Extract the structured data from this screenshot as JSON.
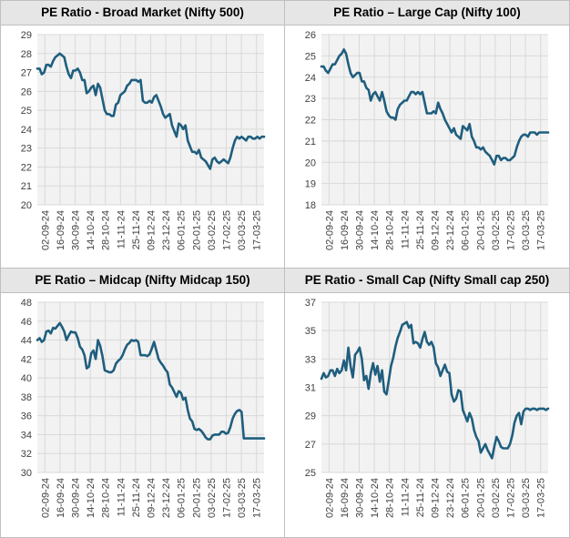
{
  "chart_data": [
    {
      "type": "line",
      "title": "PE Ratio - Broad Market (Nifty 500)",
      "x_ticks": [
        "02-09-24",
        "16-09-24",
        "30-09-24",
        "14-10-24",
        "28-10-24",
        "11-11-24",
        "25-11-24",
        "09-12-24",
        "23-12-24",
        "06-01-25",
        "20-01-25",
        "03-02-25",
        "17-02-25",
        "03-03-25",
        "17-03-25"
      ],
      "ylim": [
        20,
        29
      ],
      "y_ticks": [
        20,
        21,
        22,
        23,
        24,
        25,
        26,
        27,
        28,
        29
      ],
      "grid": true,
      "line_color": "#1f5e7e",
      "series": [
        {
          "x": [
            0,
            2,
            4,
            6,
            8,
            10,
            12,
            14,
            16,
            18,
            20,
            22,
            24,
            26,
            28,
            30,
            32,
            34,
            36,
            38,
            40,
            42,
            44,
            46,
            48,
            50,
            52,
            54,
            56,
            58,
            60,
            62,
            64,
            66,
            68,
            70,
            72,
            74,
            76,
            78,
            80,
            82,
            84,
            86,
            88,
            90,
            92,
            94,
            96,
            98,
            100,
            102,
            104,
            106,
            108,
            110,
            112,
            114,
            116,
            118,
            120,
            122,
            124,
            126,
            128,
            130,
            132,
            134,
            136,
            138,
            140,
            142,
            144,
            146,
            148,
            150,
            152,
            154,
            156,
            158,
            160,
            162,
            164,
            166,
            168,
            170,
            172,
            174,
            176,
            178,
            180,
            182,
            184,
            186,
            188,
            190,
            192,
            194,
            196,
            198,
            200,
            202
          ],
          "values": [
            27.2,
            27.2,
            26.9,
            27.0,
            27.4,
            27.4,
            27.3,
            27.6,
            27.8,
            27.9,
            28.0,
            27.9,
            27.8,
            27.3,
            26.9,
            26.7,
            27.1,
            27.1,
            27.2,
            27.0,
            26.6,
            26.6,
            25.9,
            26.0,
            26.2,
            26.3,
            25.8,
            26.4,
            26.2,
            25.6,
            25.0,
            24.8,
            24.8,
            24.7,
            24.7,
            25.3,
            25.4,
            25.8,
            25.9,
            26.0,
            26.3,
            26.4,
            26.6,
            26.6,
            26.6,
            26.5,
            26.6,
            25.5,
            25.4,
            25.4,
            25.5,
            25.4,
            25.7,
            25.8,
            25.5,
            25.2,
            24.8,
            24.6,
            24.7,
            24.8,
            24.2,
            23.9,
            23.6,
            24.3,
            24.2,
            24.0,
            24.2,
            23.4,
            23.1,
            22.8,
            22.8,
            22.7,
            22.9,
            22.5,
            22.4,
            22.3,
            22.1,
            21.9,
            22.4,
            22.5,
            22.3,
            22.2,
            22.3,
            22.4,
            22.3,
            22.2,
            22.5,
            23.0,
            23.4,
            23.6,
            23.5,
            23.6,
            23.5,
            23.4,
            23.6,
            23.6,
            23.5,
            23.5,
            23.6,
            23.5,
            23.6,
            23.6
          ]
        }
      ]
    },
    {
      "type": "line",
      "title": "PE Ratio – Large Cap (Nifty 100)",
      "x_ticks": [
        "02-09-24",
        "16-09-24",
        "30-09-24",
        "14-10-24",
        "28-10-24",
        "11-11-24",
        "25-11-24",
        "09-12-24",
        "23-12-24",
        "06-01-25",
        "20-01-25",
        "03-02-25",
        "17-02-25",
        "03-03-25",
        "17-03-25"
      ],
      "ylim": [
        18,
        26
      ],
      "y_ticks": [
        18,
        19,
        20,
        21,
        22,
        23,
        24,
        25,
        26
      ],
      "grid": true,
      "line_color": "#1f5e7e",
      "series": [
        {
          "x": [
            0,
            2,
            4,
            6,
            8,
            10,
            12,
            14,
            16,
            18,
            20,
            22,
            24,
            26,
            28,
            30,
            32,
            34,
            36,
            38,
            40,
            42,
            44,
            46,
            48,
            50,
            52,
            54,
            56,
            58,
            60,
            62,
            64,
            66,
            68,
            70,
            72,
            74,
            76,
            78,
            80,
            82,
            84,
            86,
            88,
            90,
            92,
            94,
            96,
            98,
            100,
            102,
            104,
            106,
            108,
            110,
            112,
            114,
            116,
            118,
            120,
            122,
            124,
            126,
            128,
            130,
            132,
            134,
            136,
            138,
            140,
            142,
            144,
            146,
            148,
            150,
            152,
            154,
            156,
            158,
            160,
            162,
            164,
            166,
            168,
            170,
            172,
            174,
            176,
            178,
            180,
            182,
            184,
            186,
            188,
            190,
            192,
            194,
            196,
            198,
            200,
            202
          ],
          "values": [
            24.5,
            24.5,
            24.3,
            24.2,
            24.4,
            24.6,
            24.6,
            24.8,
            25.0,
            25.1,
            25.3,
            25.1,
            24.6,
            24.2,
            24.0,
            24.1,
            24.2,
            24.2,
            23.8,
            23.8,
            23.5,
            23.4,
            22.9,
            23.2,
            23.3,
            23.1,
            22.9,
            23.3,
            22.9,
            22.4,
            22.2,
            22.1,
            22.1,
            22.0,
            22.5,
            22.7,
            22.8,
            22.9,
            22.9,
            23.1,
            23.3,
            23.3,
            23.2,
            23.3,
            23.2,
            23.3,
            22.8,
            22.3,
            22.3,
            22.3,
            22.4,
            22.3,
            22.8,
            22.5,
            22.3,
            22.0,
            21.8,
            21.6,
            21.4,
            21.6,
            21.3,
            21.2,
            21.1,
            21.7,
            21.6,
            21.5,
            21.8,
            21.2,
            21.0,
            20.7,
            20.7,
            20.6,
            20.7,
            20.5,
            20.4,
            20.3,
            20.1,
            19.9,
            20.3,
            20.3,
            20.1,
            20.2,
            20.2,
            20.1,
            20.1,
            20.2,
            20.3,
            20.7,
            21.0,
            21.2,
            21.3,
            21.3,
            21.2,
            21.4,
            21.4,
            21.4,
            21.3,
            21.4,
            21.4,
            21.4,
            21.4,
            21.4
          ]
        }
      ]
    },
    {
      "type": "line",
      "title": "PE Ratio – Midcap (Nifty Midcap 150)",
      "x_ticks": [
        "02-09-24",
        "16-09-24",
        "30-09-24",
        "14-10-24",
        "28-10-24",
        "11-11-24",
        "25-11-24",
        "09-12-24",
        "23-12-24",
        "06-01-25",
        "20-01-25",
        "03-02-25",
        "17-02-25",
        "03-03-25",
        "17-03-25"
      ],
      "ylim": [
        30,
        48
      ],
      "y_ticks": [
        30,
        32,
        34,
        36,
        38,
        40,
        42,
        44,
        46,
        48
      ],
      "grid": true,
      "line_color": "#1f5e7e",
      "series": [
        {
          "x": [
            0,
            2,
            4,
            6,
            8,
            10,
            12,
            14,
            16,
            18,
            20,
            22,
            24,
            26,
            28,
            30,
            32,
            34,
            36,
            38,
            40,
            42,
            44,
            46,
            48,
            50,
            52,
            54,
            56,
            58,
            60,
            62,
            64,
            66,
            68,
            70,
            72,
            74,
            76,
            78,
            80,
            82,
            84,
            86,
            88,
            90,
            92,
            94,
            96,
            98,
            100,
            102,
            104,
            106,
            108,
            110,
            112,
            114,
            116,
            118,
            120,
            122,
            124,
            126,
            128,
            130,
            132,
            134,
            136,
            138,
            140,
            142,
            144,
            146,
            148,
            150,
            152,
            154,
            156,
            158,
            160,
            162,
            164,
            166,
            168,
            170,
            172,
            174,
            176,
            178,
            180,
            182,
            184,
            186,
            188,
            190,
            192,
            194,
            196,
            198,
            200,
            202
          ],
          "values": [
            44.0,
            44.2,
            43.8,
            44.0,
            44.9,
            45.0,
            44.7,
            45.3,
            45.2,
            45.5,
            45.8,
            45.4,
            44.9,
            44.0,
            44.5,
            44.9,
            44.8,
            44.8,
            44.2,
            43.3,
            43.0,
            42.4,
            41.0,
            41.2,
            42.6,
            42.9,
            42.0,
            44.0,
            43.4,
            42.3,
            40.8,
            40.7,
            40.6,
            40.6,
            40.8,
            41.5,
            41.8,
            42.0,
            42.4,
            43.0,
            43.5,
            43.7,
            44.0,
            43.9,
            44.0,
            43.8,
            42.4,
            42.4,
            42.4,
            42.3,
            42.5,
            43.1,
            43.8,
            42.9,
            42.0,
            41.6,
            41.3,
            40.9,
            40.6,
            39.3,
            39.0,
            38.5,
            38.0,
            38.6,
            38.4,
            37.7,
            37.9,
            36.6,
            35.7,
            35.4,
            34.6,
            34.5,
            34.6,
            34.4,
            34.1,
            33.7,
            33.5,
            33.5,
            33.9,
            34.0,
            34.0,
            34.0,
            34.3,
            34.3,
            34.1,
            34.2,
            34.8,
            35.7,
            36.2,
            36.5,
            36.6,
            36.4,
            33.6,
            33.6,
            33.6,
            33.6,
            33.6,
            33.6,
            33.6,
            33.6,
            33.6,
            33.6
          ]
        }
      ]
    },
    {
      "type": "line",
      "title": "PE Ratio - Small Cap (Nifty Small cap 250)",
      "x_ticks": [
        "02-09-24",
        "16-09-24",
        "30-09-24",
        "14-10-24",
        "28-10-24",
        "11-11-24",
        "25-11-24",
        "09-12-24",
        "23-12-24",
        "06-01-25",
        "20-01-25",
        "03-02-25",
        "17-02-25",
        "03-03-25",
        "17-03-25"
      ],
      "ylim": [
        25,
        37
      ],
      "y_ticks": [
        25,
        27,
        29,
        31,
        33,
        35,
        37
      ],
      "grid": true,
      "line_color": "#1f5e7e",
      "series": [
        {
          "x": [
            0,
            2,
            4,
            6,
            8,
            10,
            12,
            14,
            16,
            18,
            20,
            22,
            24,
            26,
            28,
            30,
            32,
            34,
            36,
            38,
            40,
            42,
            44,
            46,
            48,
            50,
            52,
            54,
            56,
            58,
            60,
            62,
            64,
            66,
            68,
            70,
            72,
            74,
            76,
            78,
            80,
            82,
            84,
            86,
            88,
            90,
            92,
            94,
            96,
            98,
            100,
            102,
            104,
            106,
            108,
            110,
            112,
            114,
            116,
            118,
            120,
            122,
            124,
            126,
            128,
            130,
            132,
            134,
            136,
            138,
            140,
            142,
            144,
            146,
            148,
            150,
            152,
            154,
            156,
            158,
            160,
            162,
            164,
            166,
            168,
            170,
            172,
            174,
            176,
            178,
            180,
            182,
            184,
            186,
            188,
            190,
            192,
            194,
            196,
            198,
            200,
            202
          ],
          "values": [
            31.6,
            32.0,
            31.7,
            31.8,
            32.2,
            32.2,
            31.8,
            32.3,
            32.0,
            32.2,
            32.9,
            32.2,
            33.8,
            32.5,
            31.7,
            33.3,
            33.5,
            33.8,
            33.0,
            31.5,
            31.8,
            30.9,
            32.0,
            32.7,
            31.9,
            32.5,
            31.4,
            32.2,
            30.7,
            30.5,
            31.5,
            32.5,
            33.1,
            33.9,
            34.5,
            34.9,
            35.4,
            35.5,
            35.6,
            35.2,
            35.4,
            34.1,
            34.2,
            34.1,
            33.8,
            34.4,
            34.9,
            34.2,
            34.0,
            34.2,
            33.8,
            32.7,
            32.4,
            31.8,
            32.2,
            32.6,
            32.1,
            32.0,
            30.5,
            30.0,
            30.2,
            30.8,
            30.7,
            29.4,
            29.0,
            28.6,
            29.2,
            28.8,
            28.0,
            27.5,
            27.2,
            26.4,
            26.7,
            27.0,
            26.6,
            26.3,
            26.0,
            26.8,
            27.5,
            27.2,
            26.8,
            26.7,
            26.7,
            26.7,
            27.0,
            27.6,
            28.5,
            29.0,
            29.2,
            28.4,
            29.3,
            29.5,
            29.5,
            29.4,
            29.5,
            29.5,
            29.4,
            29.5,
            29.5,
            29.5,
            29.4,
            29.5
          ]
        }
      ]
    }
  ]
}
